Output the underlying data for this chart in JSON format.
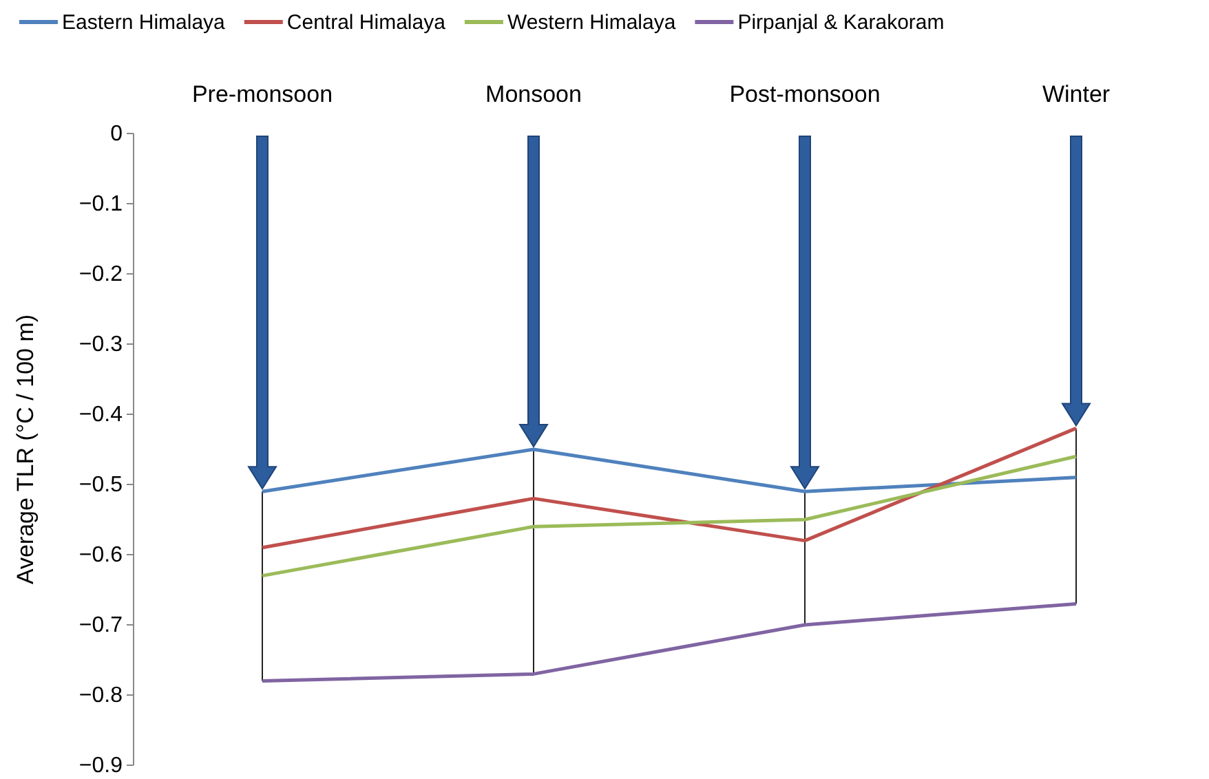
{
  "chart_data": {
    "type": "line",
    "ylabel": "Average TLR (°C / 100 m)",
    "categories": [
      "Pre-monsoon",
      "Monsoon",
      "Post-monsoon",
      "Winter"
    ],
    "series": [
      {
        "name": "Eastern Himalaya",
        "color": "#4f81bd",
        "values": [
          -0.51,
          -0.45,
          -0.51,
          -0.49
        ]
      },
      {
        "name": "Central Himalaya",
        "color": "#c0504d",
        "values": [
          -0.59,
          -0.52,
          -0.58,
          -0.42
        ]
      },
      {
        "name": "Western Himalaya",
        "color": "#9bbb59",
        "values": [
          -0.63,
          -0.56,
          -0.55,
          -0.46
        ]
      },
      {
        "name": "Pirpanjal & Karakoram",
        "color": "#8064a2",
        "values": [
          -0.78,
          -0.77,
          -0.7,
          -0.67
        ]
      }
    ],
    "ylim": [
      -0.9,
      0
    ],
    "yticks": [
      0,
      {
        "value": -0.1,
        "label": "−0.1"
      },
      {
        "value": -0.2,
        "label": "−0.2"
      },
      {
        "value": -0.3,
        "label": "−0.3"
      },
      {
        "value": -0.4,
        "label": "−0.4"
      },
      {
        "value": -0.5,
        "label": "−0.5"
      },
      {
        "value": -0.6,
        "label": "−0.6"
      },
      {
        "value": -0.7,
        "label": "−0.7"
      },
      {
        "value": -0.8,
        "label": "−0.8"
      },
      {
        "value": -0.9,
        "label": "−0.9"
      }
    ],
    "grid": false,
    "legend": "top",
    "marker": "none",
    "line_style": "solid"
  }
}
